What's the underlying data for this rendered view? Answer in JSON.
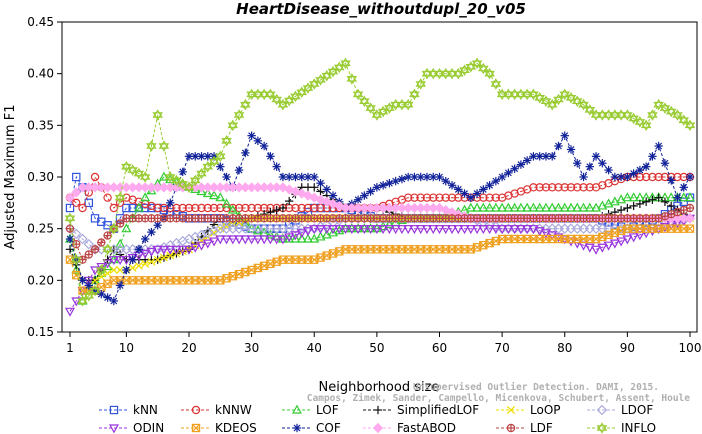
{
  "watermark": {
    "line1": "Unsupervised Outlier Detection. DAMI, 2015.",
    "line2": "Campos, Zimek, Sander, Campello, Micenkova, Schubert, Assent, Houle"
  },
  "chart_data": {
    "type": "line",
    "title": "HeartDisease_withoutdupl_20_v05",
    "xlabel": "Neighborhood size",
    "ylabel": "Adjusted Maximum F1",
    "xlim": [
      1,
      100
    ],
    "ylim": [
      0.15,
      0.45
    ],
    "xticks": [
      1,
      10,
      20,
      30,
      40,
      50,
      60,
      70,
      80,
      90,
      100
    ],
    "yticks": [
      0.15,
      0.2,
      0.25,
      0.3,
      0.35,
      0.4,
      0.45
    ],
    "ytick_labels": [
      "0.15",
      "0.20",
      "0.25",
      "0.30",
      "0.35",
      "0.40",
      "0.45"
    ],
    "legend_position": "bottom",
    "series": [
      {
        "name": "kNN",
        "color": "#3355dd",
        "marker": "square",
        "keypoints": [
          [
            1,
            0.27
          ],
          [
            2,
            0.3
          ],
          [
            3,
            0.29
          ],
          [
            5,
            0.26
          ],
          [
            8,
            0.25
          ],
          [
            10,
            0.27
          ],
          [
            15,
            0.27
          ],
          [
            20,
            0.26
          ],
          [
            25,
            0.26
          ],
          [
            30,
            0.25
          ],
          [
            35,
            0.25
          ],
          [
            40,
            0.27
          ],
          [
            45,
            0.27
          ],
          [
            50,
            0.26
          ],
          [
            55,
            0.26
          ],
          [
            60,
            0.26
          ],
          [
            65,
            0.26
          ],
          [
            70,
            0.26
          ],
          [
            75,
            0.26
          ],
          [
            80,
            0.26
          ],
          [
            85,
            0.26
          ],
          [
            90,
            0.25
          ],
          [
            95,
            0.26
          ],
          [
            100,
            0.28
          ]
        ]
      },
      {
        "name": "kNNW",
        "color": "#dd3333",
        "marker": "circle",
        "keypoints": [
          [
            1,
            0.28
          ],
          [
            3,
            0.27
          ],
          [
            5,
            0.3
          ],
          [
            8,
            0.27
          ],
          [
            10,
            0.28
          ],
          [
            15,
            0.27
          ],
          [
            20,
            0.27
          ],
          [
            25,
            0.27
          ],
          [
            30,
            0.27
          ],
          [
            35,
            0.27
          ],
          [
            40,
            0.27
          ],
          [
            45,
            0.27
          ],
          [
            50,
            0.27
          ],
          [
            55,
            0.28
          ],
          [
            60,
            0.28
          ],
          [
            65,
            0.28
          ],
          [
            70,
            0.28
          ],
          [
            75,
            0.29
          ],
          [
            80,
            0.29
          ],
          [
            85,
            0.29
          ],
          [
            90,
            0.3
          ],
          [
            95,
            0.3
          ],
          [
            100,
            0.3
          ]
        ]
      },
      {
        "name": "LOF",
        "color": "#33cc33",
        "marker": "triangle",
        "keypoints": [
          [
            1,
            0.24
          ],
          [
            3,
            0.18
          ],
          [
            5,
            0.2
          ],
          [
            8,
            0.22
          ],
          [
            10,
            0.25
          ],
          [
            13,
            0.28
          ],
          [
            16,
            0.3
          ],
          [
            20,
            0.29
          ],
          [
            25,
            0.28
          ],
          [
            30,
            0.25
          ],
          [
            35,
            0.24
          ],
          [
            40,
            0.24
          ],
          [
            45,
            0.25
          ],
          [
            50,
            0.25
          ],
          [
            55,
            0.26
          ],
          [
            60,
            0.26
          ],
          [
            65,
            0.27
          ],
          [
            70,
            0.27
          ],
          [
            75,
            0.27
          ],
          [
            80,
            0.27
          ],
          [
            85,
            0.27
          ],
          [
            90,
            0.28
          ],
          [
            95,
            0.28
          ],
          [
            100,
            0.28
          ]
        ]
      },
      {
        "name": "SimplifiedLOF",
        "color": "#111111",
        "marker": "plus",
        "keypoints": [
          [
            1,
            0.23
          ],
          [
            3,
            0.2
          ],
          [
            5,
            0.2
          ],
          [
            8,
            0.23
          ],
          [
            10,
            0.22
          ],
          [
            15,
            0.22
          ],
          [
            20,
            0.23
          ],
          [
            25,
            0.26
          ],
          [
            30,
            0.26
          ],
          [
            35,
            0.27
          ],
          [
            38,
            0.29
          ],
          [
            40,
            0.29
          ],
          [
            45,
            0.27
          ],
          [
            50,
            0.27
          ],
          [
            55,
            0.26
          ],
          [
            60,
            0.26
          ],
          [
            65,
            0.26
          ],
          [
            70,
            0.26
          ],
          [
            75,
            0.26
          ],
          [
            80,
            0.26
          ],
          [
            85,
            0.26
          ],
          [
            90,
            0.27
          ],
          [
            95,
            0.28
          ],
          [
            100,
            0.26
          ]
        ]
      },
      {
        "name": "LoOP",
        "color": "#eedd00",
        "marker": "x",
        "keypoints": [
          [
            1,
            0.22
          ],
          [
            3,
            0.19
          ],
          [
            5,
            0.2
          ],
          [
            8,
            0.21
          ],
          [
            10,
            0.21
          ],
          [
            15,
            0.22
          ],
          [
            20,
            0.23
          ],
          [
            25,
            0.25
          ],
          [
            30,
            0.26
          ],
          [
            35,
            0.26
          ],
          [
            40,
            0.26
          ],
          [
            45,
            0.26
          ],
          [
            50,
            0.26
          ],
          [
            55,
            0.26
          ],
          [
            60,
            0.26
          ],
          [
            65,
            0.26
          ],
          [
            70,
            0.26
          ],
          [
            75,
            0.26
          ],
          [
            80,
            0.26
          ],
          [
            85,
            0.26
          ],
          [
            90,
            0.26
          ],
          [
            95,
            0.26
          ],
          [
            100,
            0.26
          ]
        ]
      },
      {
        "name": "LDOF",
        "color": "#aaaadd",
        "marker": "diamond",
        "keypoints": [
          [
            1,
            0.25
          ],
          [
            3,
            0.24
          ],
          [
            5,
            0.23
          ],
          [
            8,
            0.23
          ],
          [
            10,
            0.23
          ],
          [
            15,
            0.23
          ],
          [
            20,
            0.24
          ],
          [
            25,
            0.25
          ],
          [
            30,
            0.25
          ],
          [
            35,
            0.25
          ],
          [
            40,
            0.25
          ],
          [
            45,
            0.26
          ],
          [
            50,
            0.26
          ],
          [
            55,
            0.26
          ],
          [
            60,
            0.26
          ],
          [
            65,
            0.26
          ],
          [
            70,
            0.25
          ],
          [
            75,
            0.25
          ],
          [
            80,
            0.25
          ],
          [
            85,
            0.25
          ],
          [
            90,
            0.25
          ],
          [
            95,
            0.25
          ],
          [
            100,
            0.26
          ]
        ]
      },
      {
        "name": "ODIN",
        "color": "#9933dd",
        "marker": "triangle-down",
        "keypoints": [
          [
            1,
            0.17
          ],
          [
            3,
            0.19
          ],
          [
            5,
            0.21
          ],
          [
            8,
            0.22
          ],
          [
            10,
            0.22
          ],
          [
            15,
            0.23
          ],
          [
            20,
            0.23
          ],
          [
            25,
            0.24
          ],
          [
            30,
            0.24
          ],
          [
            35,
            0.24
          ],
          [
            40,
            0.25
          ],
          [
            45,
            0.25
          ],
          [
            50,
            0.25
          ],
          [
            55,
            0.25
          ],
          [
            60,
            0.25
          ],
          [
            65,
            0.25
          ],
          [
            70,
            0.25
          ],
          [
            75,
            0.25
          ],
          [
            80,
            0.24
          ],
          [
            85,
            0.23
          ],
          [
            90,
            0.24
          ],
          [
            95,
            0.25
          ],
          [
            100,
            0.26
          ]
        ]
      },
      {
        "name": "KDEOS",
        "color": "#f0a020",
        "marker": "square-x",
        "keypoints": [
          [
            1,
            0.22
          ],
          [
            3,
            0.19
          ],
          [
            5,
            0.19
          ],
          [
            8,
            0.2
          ],
          [
            10,
            0.2
          ],
          [
            15,
            0.2
          ],
          [
            20,
            0.2
          ],
          [
            25,
            0.2
          ],
          [
            30,
            0.21
          ],
          [
            35,
            0.22
          ],
          [
            40,
            0.22
          ],
          [
            45,
            0.23
          ],
          [
            50,
            0.23
          ],
          [
            55,
            0.23
          ],
          [
            60,
            0.23
          ],
          [
            65,
            0.23
          ],
          [
            70,
            0.24
          ],
          [
            75,
            0.24
          ],
          [
            80,
            0.24
          ],
          [
            85,
            0.24
          ],
          [
            90,
            0.25
          ],
          [
            95,
            0.25
          ],
          [
            100,
            0.25
          ]
        ]
      },
      {
        "name": "COF",
        "color": "#112299",
        "marker": "star",
        "keypoints": [
          [
            1,
            0.24
          ],
          [
            3,
            0.2
          ],
          [
            5,
            0.19
          ],
          [
            8,
            0.18
          ],
          [
            10,
            0.21
          ],
          [
            13,
            0.24
          ],
          [
            16,
            0.26
          ],
          [
            20,
            0.32
          ],
          [
            24,
            0.32
          ],
          [
            27,
            0.29
          ],
          [
            30,
            0.34
          ],
          [
            32,
            0.33
          ],
          [
            35,
            0.3
          ],
          [
            40,
            0.3
          ],
          [
            45,
            0.27
          ],
          [
            50,
            0.29
          ],
          [
            55,
            0.3
          ],
          [
            60,
            0.3
          ],
          [
            65,
            0.28
          ],
          [
            70,
            0.3
          ],
          [
            75,
            0.32
          ],
          [
            78,
            0.32
          ],
          [
            80,
            0.34
          ],
          [
            83,
            0.3
          ],
          [
            85,
            0.32
          ],
          [
            88,
            0.3
          ],
          [
            90,
            0.3
          ],
          [
            93,
            0.31
          ],
          [
            95,
            0.33
          ],
          [
            98,
            0.28
          ],
          [
            100,
            0.3
          ]
        ]
      },
      {
        "name": "FastABOD",
        "color": "#ffaaee",
        "marker": "diamond-filled",
        "keypoints": [
          [
            1,
            0.28
          ],
          [
            3,
            0.29
          ],
          [
            5,
            0.29
          ],
          [
            8,
            0.29
          ],
          [
            10,
            0.29
          ],
          [
            15,
            0.29
          ],
          [
            20,
            0.29
          ],
          [
            25,
            0.29
          ],
          [
            30,
            0.29
          ],
          [
            35,
            0.29
          ],
          [
            40,
            0.28
          ],
          [
            45,
            0.27
          ],
          [
            50,
            0.27
          ],
          [
            55,
            0.27
          ],
          [
            60,
            0.27
          ],
          [
            65,
            0.26
          ],
          [
            70,
            0.26
          ],
          [
            75,
            0.26
          ],
          [
            80,
            0.26
          ],
          [
            85,
            0.26
          ],
          [
            90,
            0.26
          ],
          [
            95,
            0.26
          ],
          [
            100,
            0.26
          ]
        ]
      },
      {
        "name": "LDF",
        "color": "#bb4444",
        "marker": "circle-plus",
        "keypoints": [
          [
            1,
            0.25
          ],
          [
            3,
            0.22
          ],
          [
            5,
            0.23
          ],
          [
            8,
            0.25
          ],
          [
            10,
            0.26
          ],
          [
            15,
            0.26
          ],
          [
            20,
            0.26
          ],
          [
            25,
            0.26
          ],
          [
            30,
            0.26
          ],
          [
            35,
            0.26
          ],
          [
            40,
            0.26
          ],
          [
            45,
            0.26
          ],
          [
            50,
            0.26
          ],
          [
            55,
            0.26
          ],
          [
            60,
            0.26
          ],
          [
            65,
            0.26
          ],
          [
            70,
            0.26
          ],
          [
            75,
            0.26
          ],
          [
            80,
            0.26
          ],
          [
            85,
            0.26
          ],
          [
            90,
            0.26
          ],
          [
            95,
            0.26
          ],
          [
            100,
            0.27
          ]
        ]
      },
      {
        "name": "INFLO",
        "color": "#99cc33",
        "marker": "star-hollow",
        "keypoints": [
          [
            1,
            0.26
          ],
          [
            3,
            0.18
          ],
          [
            5,
            0.19
          ],
          [
            8,
            0.25
          ],
          [
            10,
            0.31
          ],
          [
            13,
            0.3
          ],
          [
            15,
            0.36
          ],
          [
            17,
            0.3
          ],
          [
            20,
            0.29
          ],
          [
            23,
            0.31
          ],
          [
            25,
            0.32
          ],
          [
            27,
            0.35
          ],
          [
            30,
            0.38
          ],
          [
            33,
            0.38
          ],
          [
            35,
            0.37
          ],
          [
            40,
            0.39
          ],
          [
            45,
            0.41
          ],
          [
            47,
            0.38
          ],
          [
            50,
            0.36
          ],
          [
            53,
            0.37
          ],
          [
            55,
            0.37
          ],
          [
            58,
            0.4
          ],
          [
            60,
            0.4
          ],
          [
            63,
            0.4
          ],
          [
            66,
            0.41
          ],
          [
            68,
            0.4
          ],
          [
            70,
            0.38
          ],
          [
            73,
            0.38
          ],
          [
            75,
            0.38
          ],
          [
            78,
            0.37
          ],
          [
            80,
            0.38
          ],
          [
            83,
            0.37
          ],
          [
            85,
            0.36
          ],
          [
            88,
            0.36
          ],
          [
            90,
            0.36
          ],
          [
            93,
            0.35
          ],
          [
            95,
            0.37
          ],
          [
            98,
            0.36
          ],
          [
            100,
            0.35
          ]
        ]
      }
    ]
  }
}
